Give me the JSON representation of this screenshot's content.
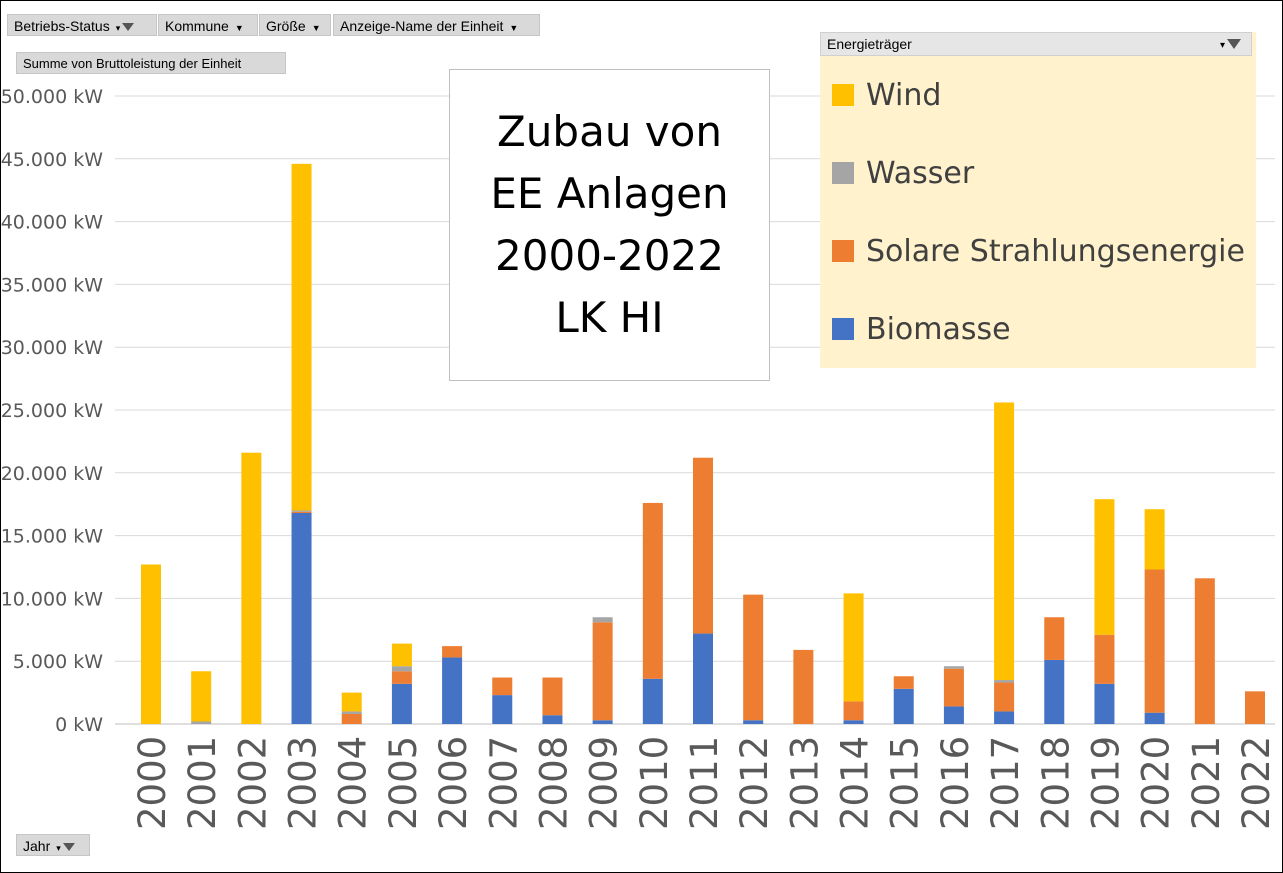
{
  "filters": {
    "betriebs_status": "Betriebs-Status",
    "kommune": "Kommune",
    "groesse": "Größe",
    "anzeige_name": "Anzeige-Name der Einheit",
    "value_field": "Summe  von Bruttoleistung der Einheit",
    "jahr": "Jahr",
    "legend_field": "Energieträger"
  },
  "title_lines": [
    "Zubau von",
    "EE Anlagen",
    "2000-2022",
    "LK HI"
  ],
  "colors": {
    "Wind": "#ffc000",
    "Wasser": "#a5a5a5",
    "Solare Strahlungsenergie": "#ed7d31",
    "Biomasse": "#4472c4"
  },
  "legend_items": [
    "Wind",
    "Wasser",
    "Solare Strahlungsenergie",
    "Biomasse"
  ],
  "chart_data": {
    "type": "bar",
    "stacked": true,
    "title": "Zubau von EE Anlagen 2000-2022 LK HI",
    "categories": [
      "2000",
      "2001",
      "2002",
      "2003",
      "2004",
      "2005",
      "2006",
      "2007",
      "2008",
      "2009",
      "2010",
      "2011",
      "2012",
      "2013",
      "2014",
      "2015",
      "2016",
      "2017",
      "2018",
      "2019",
      "2020",
      "2021",
      "2022"
    ],
    "series": [
      {
        "name": "Biomasse",
        "values": [
          0,
          0,
          0,
          16800,
          0,
          3200,
          5300,
          2300,
          700,
          300,
          3600,
          7200,
          300,
          0,
          300,
          2800,
          1400,
          1000,
          5100,
          3200,
          900,
          0,
          0
        ]
      },
      {
        "name": "Solare Strahlungsenergie",
        "values": [
          0,
          0,
          0,
          100,
          800,
          1000,
          900,
          1400,
          3000,
          7800,
          14000,
          14000,
          10000,
          5900,
          1500,
          1000,
          3000,
          2300,
          3400,
          3900,
          11400,
          11600,
          2600
        ]
      },
      {
        "name": "Wasser",
        "values": [
          0,
          200,
          0,
          100,
          200,
          400,
          0,
          0,
          0,
          400,
          0,
          0,
          0,
          0,
          0,
          0,
          200,
          200,
          0,
          0,
          0,
          0,
          0
        ]
      },
      {
        "name": "Wind",
        "values": [
          12700,
          4000,
          21600,
          27600,
          1500,
          1800,
          0,
          0,
          0,
          0,
          0,
          0,
          0,
          0,
          8600,
          0,
          0,
          22100,
          0,
          10800,
          4800,
          0,
          0
        ]
      }
    ],
    "y_ticks": [
      "0 kW",
      "5.000 kW",
      "10.000 kW",
      "15.000 kW",
      "20.000 kW",
      "25.000 kW",
      "30.000 kW",
      "35.000 kW",
      "40.000 kW",
      "45.000 kW",
      "50.000 kW"
    ],
    "ylim": [
      0,
      50000
    ],
    "grid": true,
    "legend_position": "top-right"
  }
}
